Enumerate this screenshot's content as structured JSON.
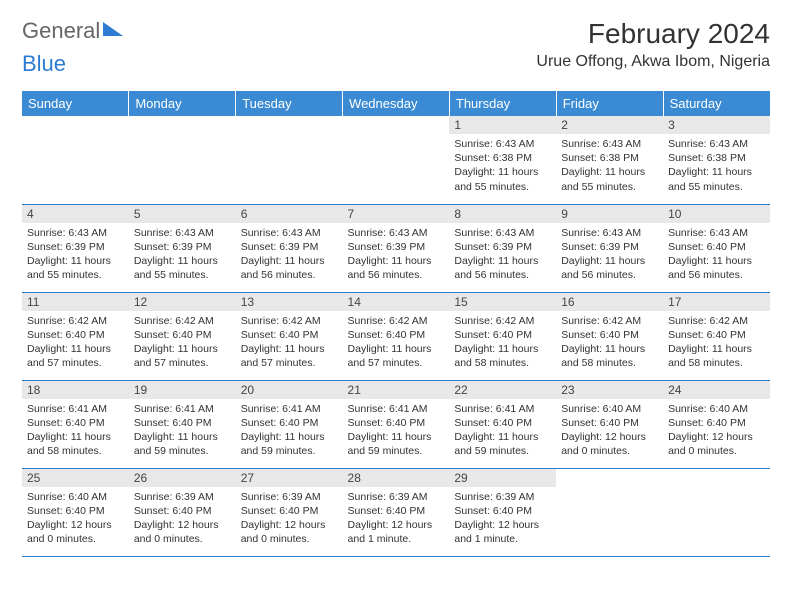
{
  "logo": {
    "text1": "General",
    "text2": "Blue"
  },
  "title": "February 2024",
  "location": "Urue Offong, Akwa Ibom, Nigeria",
  "colors": {
    "header_bg": "#3b8bd4",
    "header_text": "#ffffff",
    "daynum_bg": "#e8e8e8",
    "border": "#2e7cd1",
    "logo_gray": "#666666",
    "logo_blue": "#2e7cd1"
  },
  "weekdays": [
    "Sunday",
    "Monday",
    "Tuesday",
    "Wednesday",
    "Thursday",
    "Friday",
    "Saturday"
  ],
  "weeks": [
    [
      null,
      null,
      null,
      null,
      {
        "n": "1",
        "sr": "Sunrise: 6:43 AM",
        "ss": "Sunset: 6:38 PM",
        "dl1": "Daylight: 11 hours",
        "dl2": "and 55 minutes."
      },
      {
        "n": "2",
        "sr": "Sunrise: 6:43 AM",
        "ss": "Sunset: 6:38 PM",
        "dl1": "Daylight: 11 hours",
        "dl2": "and 55 minutes."
      },
      {
        "n": "3",
        "sr": "Sunrise: 6:43 AM",
        "ss": "Sunset: 6:38 PM",
        "dl1": "Daylight: 11 hours",
        "dl2": "and 55 minutes."
      }
    ],
    [
      {
        "n": "4",
        "sr": "Sunrise: 6:43 AM",
        "ss": "Sunset: 6:39 PM",
        "dl1": "Daylight: 11 hours",
        "dl2": "and 55 minutes."
      },
      {
        "n": "5",
        "sr": "Sunrise: 6:43 AM",
        "ss": "Sunset: 6:39 PM",
        "dl1": "Daylight: 11 hours",
        "dl2": "and 55 minutes."
      },
      {
        "n": "6",
        "sr": "Sunrise: 6:43 AM",
        "ss": "Sunset: 6:39 PM",
        "dl1": "Daylight: 11 hours",
        "dl2": "and 56 minutes."
      },
      {
        "n": "7",
        "sr": "Sunrise: 6:43 AM",
        "ss": "Sunset: 6:39 PM",
        "dl1": "Daylight: 11 hours",
        "dl2": "and 56 minutes."
      },
      {
        "n": "8",
        "sr": "Sunrise: 6:43 AM",
        "ss": "Sunset: 6:39 PM",
        "dl1": "Daylight: 11 hours",
        "dl2": "and 56 minutes."
      },
      {
        "n": "9",
        "sr": "Sunrise: 6:43 AM",
        "ss": "Sunset: 6:39 PM",
        "dl1": "Daylight: 11 hours",
        "dl2": "and 56 minutes."
      },
      {
        "n": "10",
        "sr": "Sunrise: 6:43 AM",
        "ss": "Sunset: 6:40 PM",
        "dl1": "Daylight: 11 hours",
        "dl2": "and 56 minutes."
      }
    ],
    [
      {
        "n": "11",
        "sr": "Sunrise: 6:42 AM",
        "ss": "Sunset: 6:40 PM",
        "dl1": "Daylight: 11 hours",
        "dl2": "and 57 minutes."
      },
      {
        "n": "12",
        "sr": "Sunrise: 6:42 AM",
        "ss": "Sunset: 6:40 PM",
        "dl1": "Daylight: 11 hours",
        "dl2": "and 57 minutes."
      },
      {
        "n": "13",
        "sr": "Sunrise: 6:42 AM",
        "ss": "Sunset: 6:40 PM",
        "dl1": "Daylight: 11 hours",
        "dl2": "and 57 minutes."
      },
      {
        "n": "14",
        "sr": "Sunrise: 6:42 AM",
        "ss": "Sunset: 6:40 PM",
        "dl1": "Daylight: 11 hours",
        "dl2": "and 57 minutes."
      },
      {
        "n": "15",
        "sr": "Sunrise: 6:42 AM",
        "ss": "Sunset: 6:40 PM",
        "dl1": "Daylight: 11 hours",
        "dl2": "and 58 minutes."
      },
      {
        "n": "16",
        "sr": "Sunrise: 6:42 AM",
        "ss": "Sunset: 6:40 PM",
        "dl1": "Daylight: 11 hours",
        "dl2": "and 58 minutes."
      },
      {
        "n": "17",
        "sr": "Sunrise: 6:42 AM",
        "ss": "Sunset: 6:40 PM",
        "dl1": "Daylight: 11 hours",
        "dl2": "and 58 minutes."
      }
    ],
    [
      {
        "n": "18",
        "sr": "Sunrise: 6:41 AM",
        "ss": "Sunset: 6:40 PM",
        "dl1": "Daylight: 11 hours",
        "dl2": "and 58 minutes."
      },
      {
        "n": "19",
        "sr": "Sunrise: 6:41 AM",
        "ss": "Sunset: 6:40 PM",
        "dl1": "Daylight: 11 hours",
        "dl2": "and 59 minutes."
      },
      {
        "n": "20",
        "sr": "Sunrise: 6:41 AM",
        "ss": "Sunset: 6:40 PM",
        "dl1": "Daylight: 11 hours",
        "dl2": "and 59 minutes."
      },
      {
        "n": "21",
        "sr": "Sunrise: 6:41 AM",
        "ss": "Sunset: 6:40 PM",
        "dl1": "Daylight: 11 hours",
        "dl2": "and 59 minutes."
      },
      {
        "n": "22",
        "sr": "Sunrise: 6:41 AM",
        "ss": "Sunset: 6:40 PM",
        "dl1": "Daylight: 11 hours",
        "dl2": "and 59 minutes."
      },
      {
        "n": "23",
        "sr": "Sunrise: 6:40 AM",
        "ss": "Sunset: 6:40 PM",
        "dl1": "Daylight: 12 hours",
        "dl2": "and 0 minutes."
      },
      {
        "n": "24",
        "sr": "Sunrise: 6:40 AM",
        "ss": "Sunset: 6:40 PM",
        "dl1": "Daylight: 12 hours",
        "dl2": "and 0 minutes."
      }
    ],
    [
      {
        "n": "25",
        "sr": "Sunrise: 6:40 AM",
        "ss": "Sunset: 6:40 PM",
        "dl1": "Daylight: 12 hours",
        "dl2": "and 0 minutes."
      },
      {
        "n": "26",
        "sr": "Sunrise: 6:39 AM",
        "ss": "Sunset: 6:40 PM",
        "dl1": "Daylight: 12 hours",
        "dl2": "and 0 minutes."
      },
      {
        "n": "27",
        "sr": "Sunrise: 6:39 AM",
        "ss": "Sunset: 6:40 PM",
        "dl1": "Daylight: 12 hours",
        "dl2": "and 0 minutes."
      },
      {
        "n": "28",
        "sr": "Sunrise: 6:39 AM",
        "ss": "Sunset: 6:40 PM",
        "dl1": "Daylight: 12 hours",
        "dl2": "and 1 minute."
      },
      {
        "n": "29",
        "sr": "Sunrise: 6:39 AM",
        "ss": "Sunset: 6:40 PM",
        "dl1": "Daylight: 12 hours",
        "dl2": "and 1 minute."
      },
      null,
      null
    ]
  ]
}
